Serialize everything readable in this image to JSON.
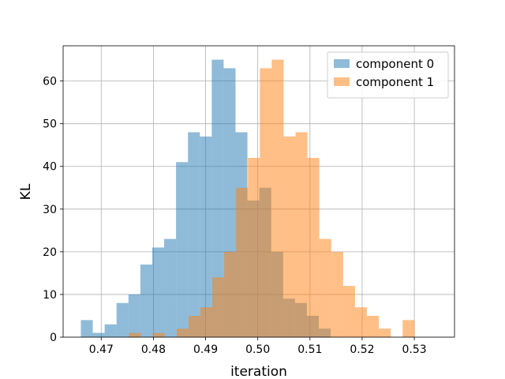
{
  "chart_data": {
    "type": "histogram",
    "title": "",
    "xlabel": "iteration",
    "ylabel": "KL",
    "xlim": [
      0.4627,
      0.5377
    ],
    "ylim": [
      0,
      68.25
    ],
    "xticks": [
      0.47,
      0.48,
      0.49,
      0.5,
      0.51,
      0.52,
      0.53
    ],
    "xtick_labels": [
      "0.47",
      "0.48",
      "0.49",
      "0.50",
      "0.51",
      "0.52",
      "0.53"
    ],
    "yticks": [
      0,
      10,
      20,
      30,
      40,
      50,
      60
    ],
    "ytick_labels": [
      "0",
      "10",
      "20",
      "30",
      "40",
      "50",
      "60"
    ],
    "grid": true,
    "legend_position": "upper right",
    "series": [
      {
        "name": "component 0",
        "color": "#1f77b4",
        "alpha": 0.5,
        "bin_start": 0.4661,
        "bin_width": 0.00228,
        "counts": [
          4,
          1,
          3,
          8,
          10,
          17,
          21,
          23,
          41,
          48,
          47,
          65,
          63,
          48,
          32,
          35,
          20,
          9,
          8,
          5,
          2,
          0,
          0,
          0,
          0,
          0,
          0,
          0,
          0,
          0
        ]
      },
      {
        "name": "component 1",
        "color": "#ff7f0e",
        "alpha": 0.5,
        "bin_start": 0.4662,
        "bin_width": 0.00228,
        "counts": [
          0,
          0,
          0,
          0,
          1,
          0,
          1,
          0,
          2,
          5,
          7,
          14,
          20,
          35,
          42,
          63,
          65,
          47,
          48,
          42,
          23,
          20,
          12,
          7,
          5,
          2,
          0,
          4,
          0,
          0
        ]
      }
    ]
  }
}
